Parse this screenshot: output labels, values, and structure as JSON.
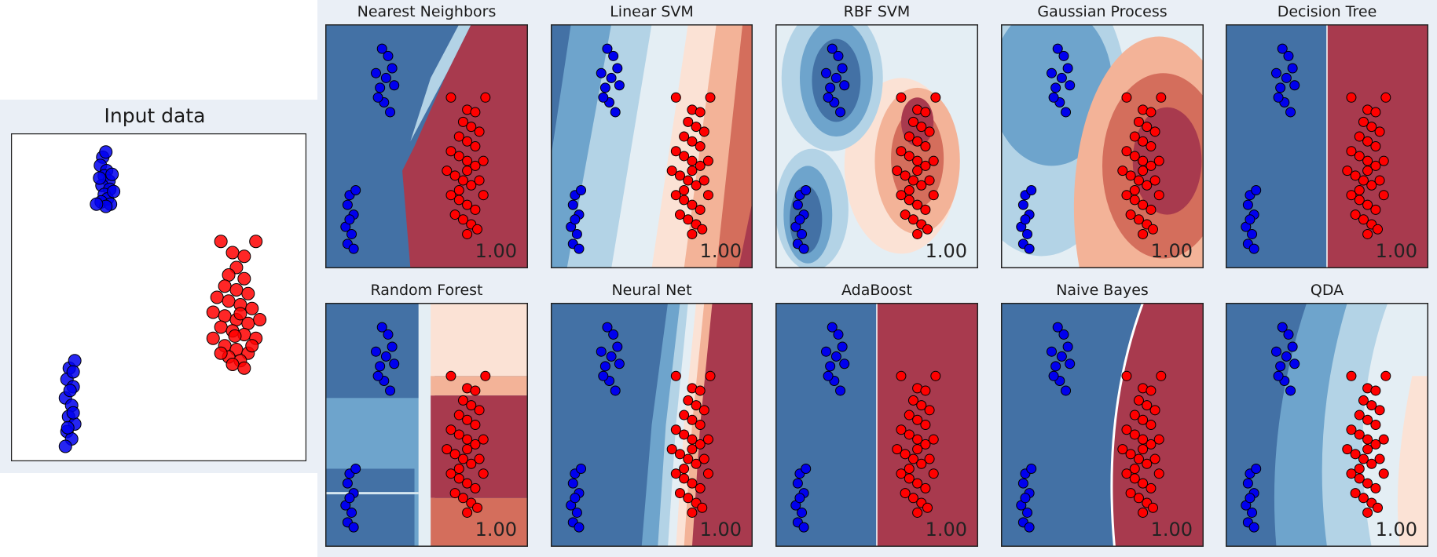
{
  "colors": {
    "class_a_point": "#0000ee",
    "class_b_point": "#ff0000",
    "region_blue_dark": "#4371a5",
    "region_red_dark": "#a83a4e",
    "panel_background": "#eaeff6"
  },
  "input_panel": {
    "title": "Input data"
  },
  "chart_data": [
    {
      "type": "scatter",
      "title": "Input data",
      "series": [
        {
          "points": [
            [
              0.58,
              0.68
            ],
            [
              0.62,
              0.75
            ],
            [
              0.55,
              0.57
            ],
            [
              0.63,
              0.5
            ],
            [
              0.6,
              0.43
            ],
            [
              0.66,
              0.36
            ],
            [
              0.57,
              0.3
            ],
            [
              0.67,
              0.25
            ],
            [
              0.6,
              0.18
            ],
            [
              0.64,
              0.12
            ],
            [
              0.56,
              0.08
            ],
            [
              0.68,
              0.05
            ],
            [
              0.62,
              0.02
            ],
            [
              0.5,
              0.05
            ],
            [
              0.72,
              0.22
            ],
            [
              0.54,
              0.4
            ],
            [
              0.7,
              0.45
            ],
            [
              0.15,
              -2.15
            ],
            [
              0.22,
              -2.05
            ],
            [
              0.12,
              -2.3
            ],
            [
              0.2,
              -2.4
            ],
            [
              0.1,
              -2.55
            ],
            [
              0.18,
              -2.65
            ],
            [
              0.14,
              -2.8
            ],
            [
              0.22,
              -2.9
            ],
            [
              0.12,
              -3.0
            ],
            [
              0.18,
              -3.1
            ],
            [
              0.1,
              -3.2
            ],
            [
              0.2,
              -2.2
            ],
            [
              0.16,
              -2.45
            ],
            [
              0.2,
              -2.75
            ],
            [
              0.13,
              -2.95
            ]
          ]
        },
        {
          "points": [
            [
              2.1,
              -0.45
            ],
            [
              2.55,
              -0.45
            ],
            [
              2.25,
              -0.6
            ],
            [
              2.4,
              -0.65
            ],
            [
              2.3,
              -0.8
            ],
            [
              2.2,
              -0.9
            ],
            [
              2.4,
              -0.95
            ],
            [
              2.15,
              -1.05
            ],
            [
              2.3,
              -1.1
            ],
            [
              2.45,
              -1.15
            ],
            [
              2.05,
              -1.2
            ],
            [
              2.2,
              -1.25
            ],
            [
              2.35,
              -1.3
            ],
            [
              2.5,
              -1.35
            ],
            [
              2.0,
              -1.4
            ],
            [
              2.15,
              -1.45
            ],
            [
              2.3,
              -1.5
            ],
            [
              2.45,
              -1.55
            ],
            [
              2.6,
              -1.5
            ],
            [
              2.1,
              -1.6
            ],
            [
              2.25,
              -1.65
            ],
            [
              2.4,
              -1.7
            ],
            [
              2.55,
              -1.75
            ],
            [
              2.0,
              -1.75
            ],
            [
              2.15,
              -1.85
            ],
            [
              2.3,
              -1.9
            ],
            [
              2.45,
              -1.95
            ],
            [
              2.2,
              -2.0
            ],
            [
              2.35,
              -2.05
            ],
            [
              2.25,
              -2.1
            ],
            [
              2.4,
              -2.15
            ],
            [
              2.1,
              -1.95
            ],
            [
              2.5,
              -1.85
            ],
            [
              2.28,
              -1.72
            ],
            [
              2.35,
              -1.42
            ]
          ]
        }
      ]
    },
    {
      "type": "heatmap",
      "title": "Nearest Neighbors",
      "score": "1.00"
    },
    {
      "type": "heatmap",
      "title": "Linear SVM",
      "score": "1.00"
    },
    {
      "type": "heatmap",
      "title": "RBF SVM",
      "score": "1.00"
    },
    {
      "type": "heatmap",
      "title": "Gaussian Process",
      "score": "1.00"
    },
    {
      "type": "heatmap",
      "title": "Decision Tree",
      "score": "1.00"
    },
    {
      "type": "heatmap",
      "title": "Random Forest",
      "score": "1.00"
    },
    {
      "type": "heatmap",
      "title": "Neural Net",
      "score": "1.00"
    },
    {
      "type": "heatmap",
      "title": "AdaBoost",
      "score": "1.00"
    },
    {
      "type": "heatmap",
      "title": "Naive Bayes",
      "score": "1.00"
    },
    {
      "type": "heatmap",
      "title": "QDA",
      "score": "1.00"
    }
  ]
}
